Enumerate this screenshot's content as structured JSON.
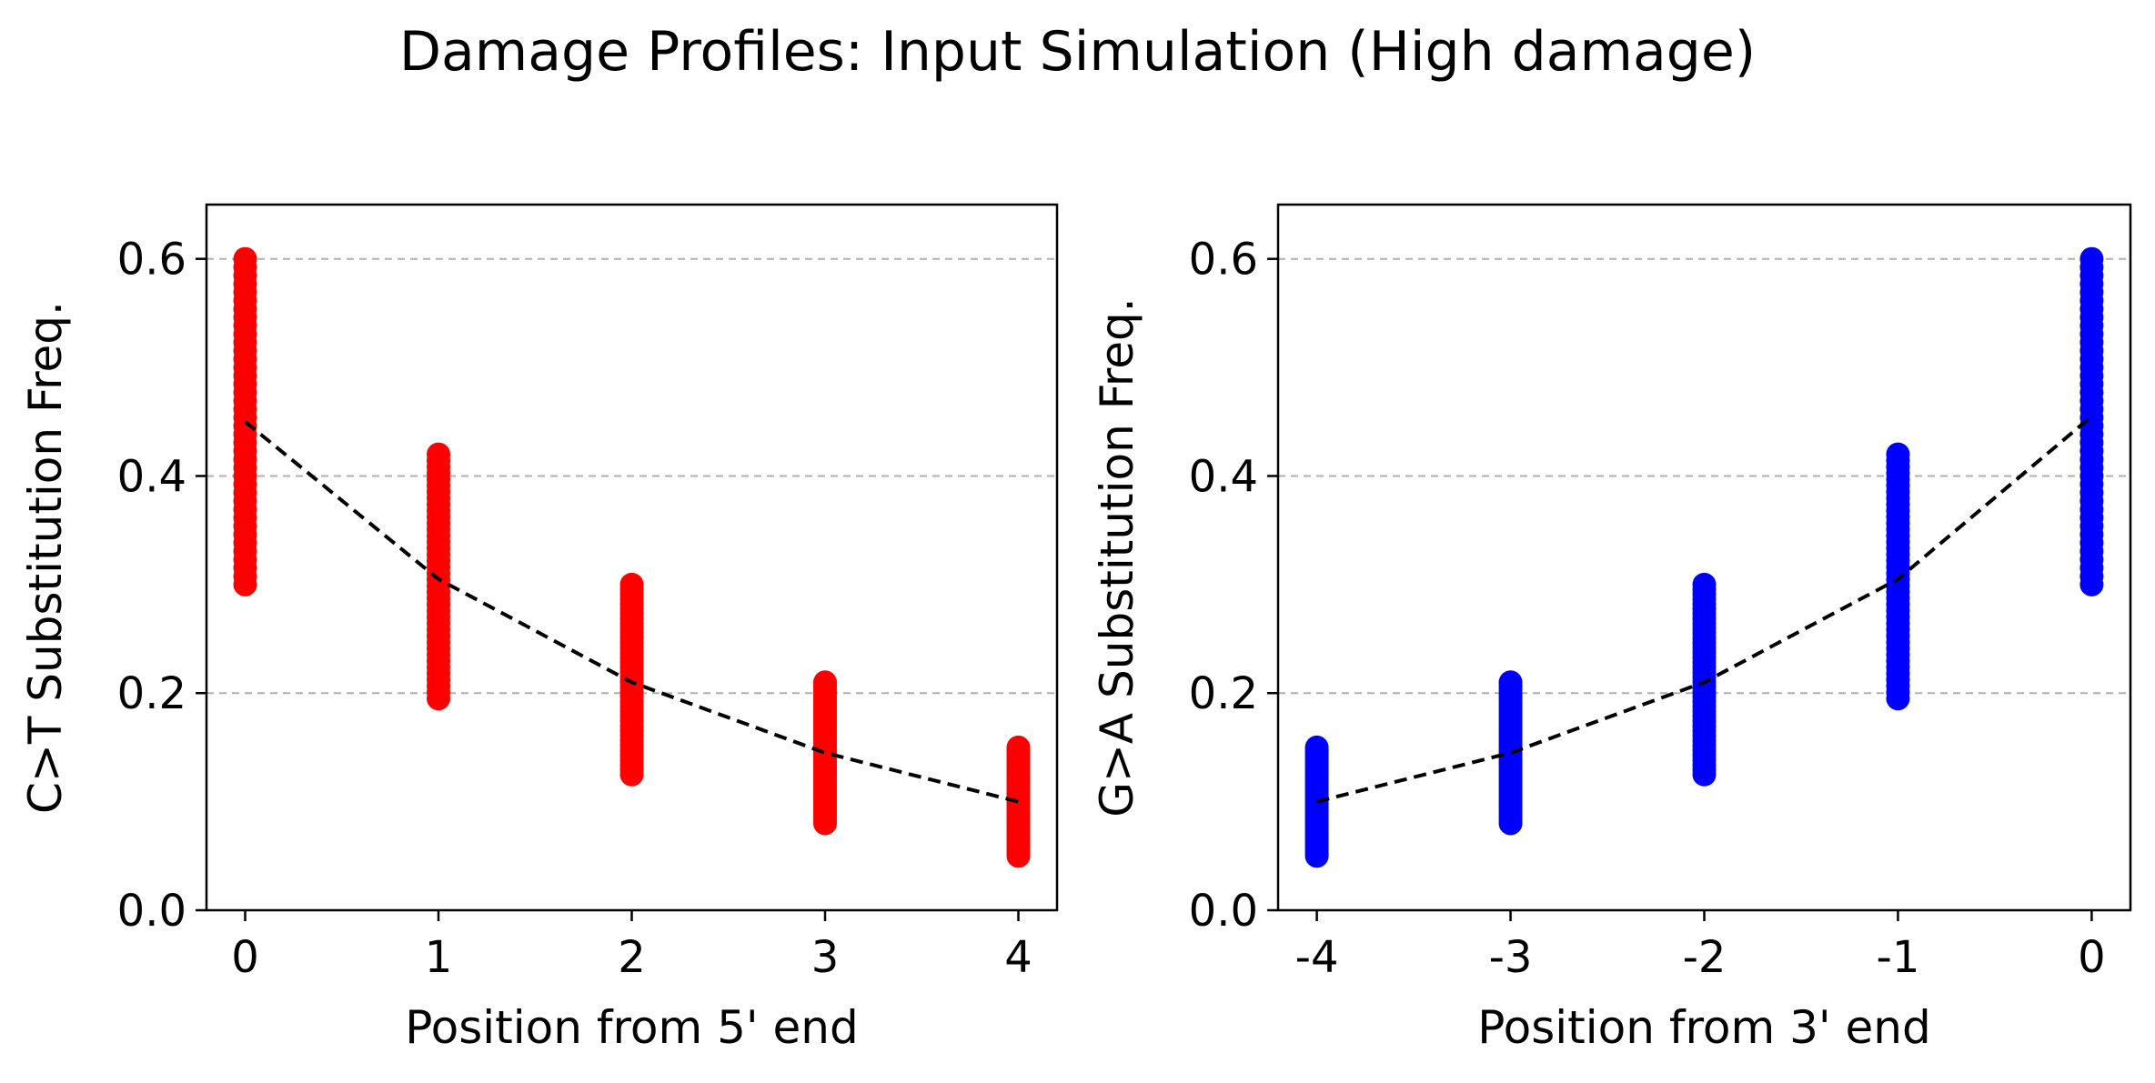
{
  "figure": {
    "title": "Damage Profiles: Input Simulation (High damage)"
  },
  "colors": {
    "left_points": "#ff0000",
    "right_points": "#0000ff",
    "mean_line": "#000000",
    "grid": "#b0b0b0"
  },
  "chart_data": [
    {
      "type": "scatter",
      "title": "",
      "xlabel": "Position from 5' end",
      "ylabel": "C>T Substitution Freq.",
      "xticks": [
        0,
        1,
        2,
        3,
        4
      ],
      "xtick_labels": [
        "0",
        "1",
        "2",
        "3",
        "4"
      ],
      "yticks": [
        0.0,
        0.2,
        0.4,
        0.6
      ],
      "ytick_labels": [
        "0.0",
        "0.2",
        "0.4",
        "0.6"
      ],
      "xlim": [
        -0.2,
        4.2
      ],
      "ylim": [
        0,
        0.65
      ],
      "grid": "y-dashed",
      "point_color": "#ff0000",
      "point_ranges": [
        {
          "x": 0,
          "ymin": 0.3,
          "ymax": 0.6
        },
        {
          "x": 1,
          "ymin": 0.195,
          "ymax": 0.42
        },
        {
          "x": 2,
          "ymin": 0.125,
          "ymax": 0.3
        },
        {
          "x": 3,
          "ymin": 0.08,
          "ymax": 0.21
        },
        {
          "x": 4,
          "ymin": 0.05,
          "ymax": 0.15
        }
      ],
      "mean_line": {
        "style": "dashed",
        "x": [
          0,
          1,
          2,
          3,
          4
        ],
        "y": [
          0.45,
          0.305,
          0.21,
          0.145,
          0.1
        ]
      }
    },
    {
      "type": "scatter",
      "title": "",
      "xlabel": "Position from 3' end",
      "ylabel": "G>A Substitution Freq.",
      "xticks": [
        -4,
        -3,
        -2,
        -1,
        0
      ],
      "xtick_labels": [
        "-4",
        "-3",
        "-2",
        "-1",
        "0"
      ],
      "yticks": [
        0.0,
        0.2,
        0.4,
        0.6
      ],
      "ytick_labels": [
        "0.0",
        "0.2",
        "0.4",
        "0.6"
      ],
      "xlim": [
        -4.2,
        0.2
      ],
      "ylim": [
        0,
        0.65
      ],
      "grid": "y-dashed",
      "point_color": "#0000ff",
      "point_ranges": [
        {
          "x": -4,
          "ymin": 0.05,
          "ymax": 0.15
        },
        {
          "x": -3,
          "ymin": 0.08,
          "ymax": 0.21
        },
        {
          "x": -2,
          "ymin": 0.125,
          "ymax": 0.3
        },
        {
          "x": -1,
          "ymin": 0.195,
          "ymax": 0.42
        },
        {
          "x": 0,
          "ymin": 0.3,
          "ymax": 0.6
        }
      ],
      "mean_line": {
        "style": "dashed",
        "x": [
          -4,
          -3,
          -2,
          -1,
          0
        ],
        "y": [
          0.1,
          0.145,
          0.21,
          0.305,
          0.455
        ]
      }
    }
  ]
}
